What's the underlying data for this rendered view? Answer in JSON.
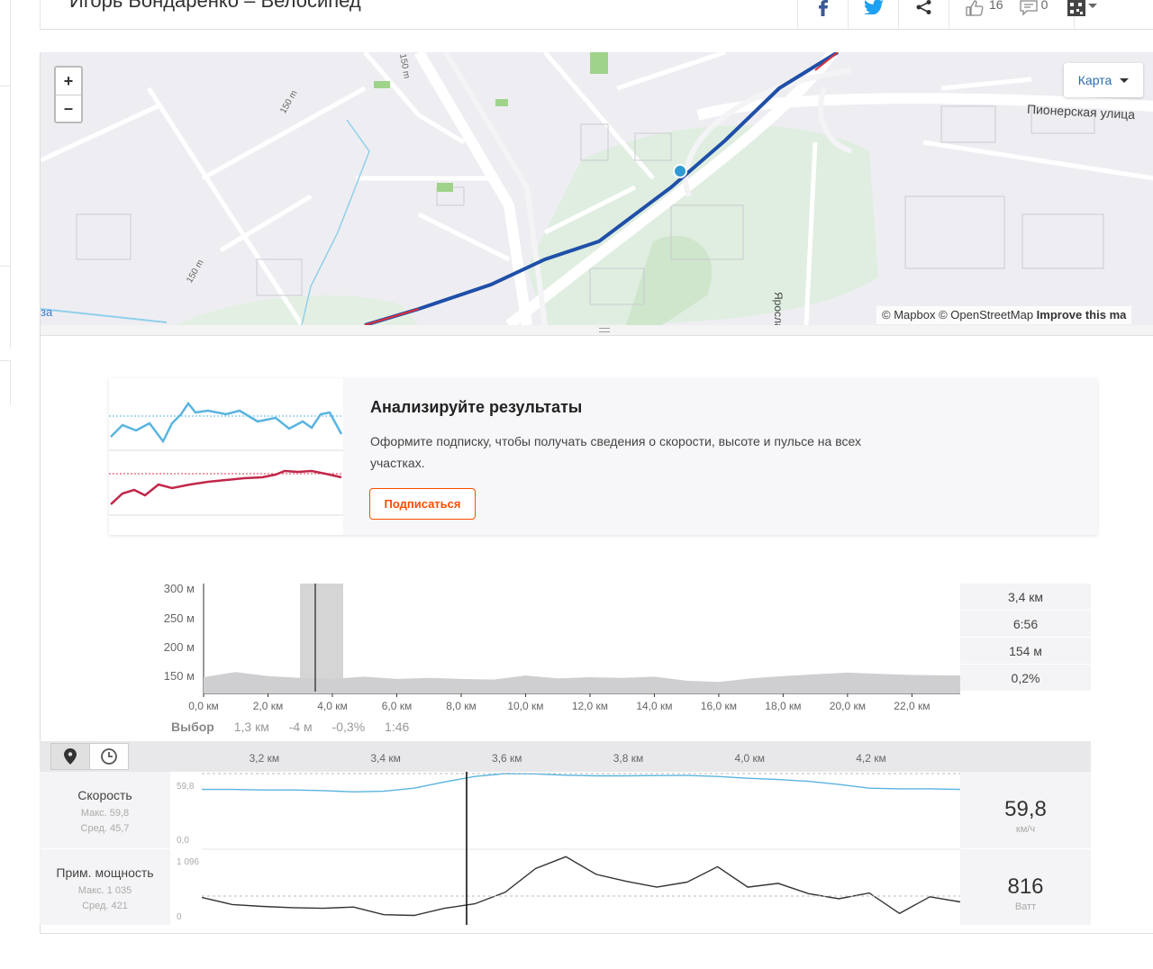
{
  "header": {
    "title": "Игорь Бондаренко – Велосипед",
    "likes": "16",
    "comments": "0"
  },
  "map": {
    "zoom_in": "+",
    "zoom_out": "–",
    "map_type": "Карта",
    "attribution_mapbox": "© Mapbox",
    "attribution_osm": "© OpenStreetMap",
    "attribution_improve": "Improve this ma",
    "street_labels": [
      "Пионерская улица",
      "Ярославск",
      "за"
    ],
    "contour_labels": [
      "150 m",
      "150 m",
      "150 m"
    ],
    "route_color": "#1f4fa8",
    "marker_color": "#2f9bd1"
  },
  "upsell": {
    "title": "Анализируйте результаты",
    "text": "Оформите подписку, чтобы получать сведения о скорости, высоте и пульсе на всех участках.",
    "button": "Подписаться",
    "accent": "#fc4c02"
  },
  "elevation": {
    "y_ticks": [
      "300 м",
      "250 м",
      "200 м",
      "150 м"
    ],
    "x_ticks": [
      "0,0 км",
      "2,0 км",
      "4,0 км",
      "6,0 км",
      "8,0 км",
      "10,0 км",
      "12,0 км",
      "14,0 км",
      "16,0 км",
      "18,0 км",
      "20,0 км",
      "22,0 км"
    ],
    "stats": [
      "3,4 км",
      "6:56",
      "154 м",
      "0,2%"
    ],
    "selection": {
      "label": "Выбор",
      "distance": "1,3 км",
      "elevation": "-4 м",
      "grade": "-0,3%",
      "time": "1:46"
    }
  },
  "analysis": {
    "distance_ticks": [
      "3,2 км",
      "3,4 км",
      "3,6 км",
      "3,8 км",
      "4,0 км",
      "4,2 км"
    ],
    "speed": {
      "name": "Скорость",
      "max": "Макс. 59,8",
      "avg": "Сред. 45,7",
      "axis_top": "59,8",
      "axis_bottom": "0,0",
      "value": "59,8",
      "unit": "км/ч",
      "color": "#5ab4e0"
    },
    "power": {
      "name": "Прим. мощность",
      "max": "Макс. 1 035",
      "avg": "Сред. 421",
      "axis_top": "1 096",
      "axis_bottom": "0",
      "value": "816",
      "unit": "Ватт",
      "color": "#333333"
    }
  },
  "chart_data": [
    {
      "type": "area",
      "x": [
        0,
        1,
        2,
        3,
        4,
        5,
        6,
        7,
        8,
        9,
        10,
        11,
        12,
        13,
        14,
        15,
        16,
        17,
        18,
        19,
        20,
        21,
        22,
        23.5
      ],
      "values": [
        148,
        157,
        150,
        147,
        145,
        149,
        145,
        147,
        145,
        144,
        151,
        146,
        148,
        147,
        149,
        142,
        140,
        146,
        150,
        153,
        156,
        154,
        152,
        151
      ],
      "xlabel": "",
      "ylabel": "",
      "ylim": [
        120,
        310
      ],
      "y_ticks": [
        "300 м",
        "250 м",
        "200 м",
        "150 м"
      ],
      "x_ticks": [
        "0,0 км",
        "2,0 км",
        "4,0 км",
        "6,0 км",
        "8,0 км",
        "10,0 км",
        "12,0 км",
        "14,0 км",
        "16,0 км",
        "18,0 км",
        "20,0 км",
        "22,0 км"
      ]
    },
    {
      "type": "line",
      "x": [
        3.1,
        3.15,
        3.2,
        3.25,
        3.3,
        3.35,
        3.4,
        3.45,
        3.5,
        3.55,
        3.6,
        3.65,
        3.7,
        3.75,
        3.8,
        3.85,
        3.9,
        3.95,
        4.0,
        4.05,
        4.1,
        4.15,
        4.2,
        4.25,
        4.3,
        4.35
      ],
      "series": [
        {
          "name": "Скорость",
          "values": [
            47,
            47,
            46.5,
            46.5,
            46,
            45,
            45.5,
            48,
            53,
            57.5,
            59.8,
            59.5,
            58.5,
            58,
            58,
            58.2,
            58.3,
            57.5,
            56,
            55,
            53.5,
            51,
            48,
            47.5,
            47.5,
            47
          ]
        }
      ],
      "ylim": [
        0,
        59.8
      ]
    },
    {
      "type": "line",
      "x": [
        3.1,
        3.15,
        3.2,
        3.25,
        3.3,
        3.35,
        3.4,
        3.45,
        3.5,
        3.55,
        3.6,
        3.65,
        3.7,
        3.75,
        3.8,
        3.85,
        3.9,
        3.95,
        4.0,
        4.05,
        4.1,
        4.15,
        4.2,
        4.25,
        4.3,
        4.35
      ],
      "series": [
        {
          "name": "Прим. мощность",
          "values": [
            400,
            290,
            260,
            240,
            230,
            250,
            130,
            120,
            230,
            300,
            480,
            850,
            1035,
            760,
            650,
            560,
            640,
            880,
            560,
            620,
            460,
            380,
            470,
            150,
            410,
            330
          ]
        }
      ],
      "ylim": [
        0,
        1096
      ]
    }
  ]
}
